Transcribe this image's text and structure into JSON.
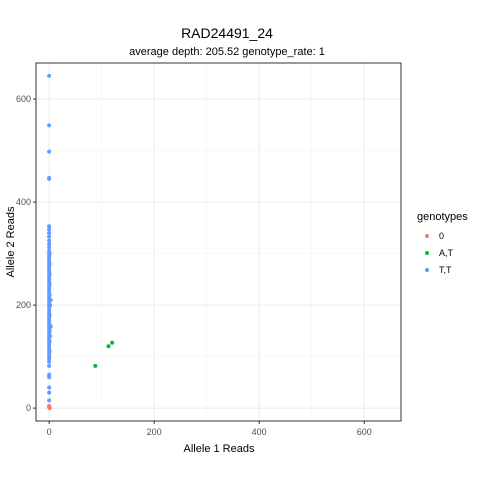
{
  "chart_data": {
    "type": "scatter",
    "title": "RAD24491_24",
    "subtitle": "average depth:  205.52  genotype_rate:  1",
    "xlabel": "Allele 1 Reads",
    "ylabel": "Allele 2 Reads",
    "xlim": [
      -25,
      670
    ],
    "ylim": [
      -25,
      670
    ],
    "x_ticks": [
      0,
      200,
      400,
      600
    ],
    "y_ticks": [
      0,
      200,
      400,
      600
    ],
    "grid": true,
    "legend": {
      "title": "genotypes",
      "position": "right"
    },
    "series": [
      {
        "name": "0",
        "color": "#F8766D",
        "points": [
          [
            0,
            2
          ],
          [
            0,
            4
          ],
          [
            1,
            0
          ]
        ]
      },
      {
        "name": "A,T",
        "color": "#00BA38",
        "points": [
          [
            88,
            82
          ],
          [
            113,
            120
          ],
          [
            120,
            127
          ]
        ]
      },
      {
        "name": "T,T",
        "color": "#619CFF",
        "points": [
          [
            0,
            645
          ],
          [
            0,
            549
          ],
          [
            0,
            498
          ],
          [
            0,
            447
          ],
          [
            0,
            445
          ],
          [
            0,
            353
          ],
          [
            0,
            347
          ],
          [
            0,
            340
          ],
          [
            0,
            333
          ],
          [
            0,
            325
          ],
          [
            0,
            318
          ],
          [
            0,
            312
          ],
          [
            0,
            305
          ],
          [
            0,
            300
          ],
          [
            0,
            295
          ],
          [
            0,
            290
          ],
          [
            0,
            285
          ],
          [
            0,
            280
          ],
          [
            0,
            275
          ],
          [
            0,
            270
          ],
          [
            0,
            265
          ],
          [
            0,
            260
          ],
          [
            0,
            255
          ],
          [
            0,
            250
          ],
          [
            0,
            245
          ],
          [
            0,
            240
          ],
          [
            0,
            235
          ],
          [
            0,
            230
          ],
          [
            0,
            225
          ],
          [
            0,
            220
          ],
          [
            0,
            215
          ],
          [
            0,
            210
          ],
          [
            0,
            205
          ],
          [
            0,
            200
          ],
          [
            0,
            195
          ],
          [
            0,
            190
          ],
          [
            0,
            185
          ],
          [
            0,
            180
          ],
          [
            0,
            175
          ],
          [
            0,
            170
          ],
          [
            0,
            165
          ],
          [
            0,
            160
          ],
          [
            0,
            155
          ],
          [
            0,
            150
          ],
          [
            0,
            145
          ],
          [
            0,
            140
          ],
          [
            0,
            135
          ],
          [
            0,
            130
          ],
          [
            0,
            125
          ],
          [
            0,
            120
          ],
          [
            0,
            115
          ],
          [
            0,
            110
          ],
          [
            0,
            105
          ],
          [
            0,
            100
          ],
          [
            0,
            95
          ],
          [
            0,
            90
          ],
          [
            0,
            82
          ],
          [
            0,
            65
          ],
          [
            0,
            60
          ],
          [
            0,
            40
          ],
          [
            0,
            30
          ],
          [
            0,
            15
          ],
          [
            1,
            300
          ],
          [
            1,
            280
          ],
          [
            1,
            260
          ],
          [
            1,
            240
          ],
          [
            1,
            220
          ],
          [
            1,
            200
          ],
          [
            1,
            180
          ],
          [
            1,
            150
          ],
          [
            1,
            130
          ],
          [
            1,
            110
          ],
          [
            2,
            200
          ],
          [
            2,
            160
          ],
          [
            2,
            140
          ],
          [
            3,
            210
          ],
          [
            3,
            158
          ]
        ]
      }
    ]
  }
}
